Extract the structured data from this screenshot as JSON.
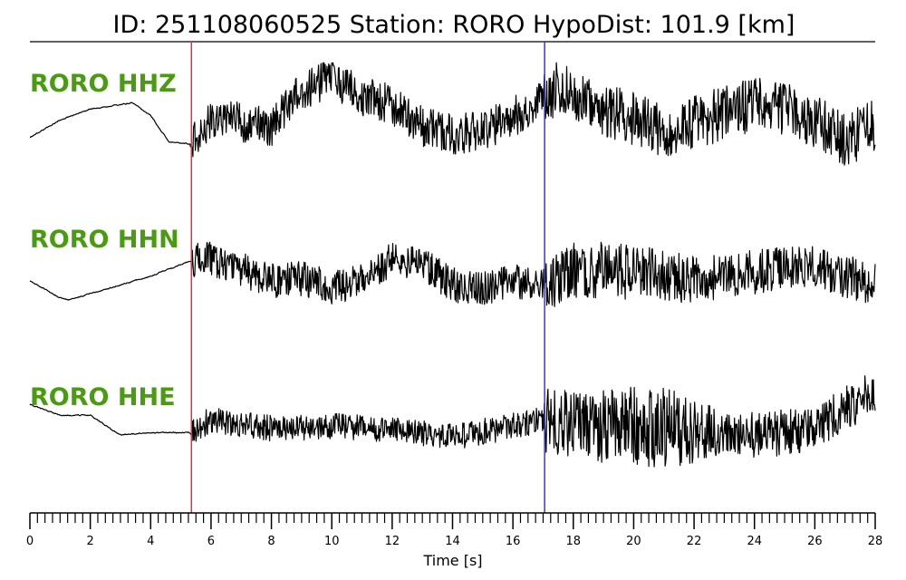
{
  "chart_data": {
    "type": "line",
    "title": "ID: 251108060525   Station: RORO   HypoDist:   101.9 [km]",
    "xlabel": "Time [s]",
    "xlim": [
      0,
      28
    ],
    "x_tick_labels": [
      "0",
      "2",
      "4",
      "6",
      "8",
      "10",
      "12",
      "14",
      "16",
      "18",
      "20",
      "22",
      "24",
      "26",
      "28"
    ],
    "x_major_step": 2,
    "x_minor_step": 0.25,
    "grid": false,
    "markers": [
      {
        "time": 5.35,
        "color": "#e8323c"
      },
      {
        "time": 17.05,
        "color": "#3a3ac8"
      }
    ],
    "series": [
      {
        "name": "RORO HHZ",
        "color": "#000000",
        "label_color": "#4a9a12",
        "keypoints": [
          [
            0,
            -0.45
          ],
          [
            1,
            -0.05
          ],
          [
            2,
            0.2
          ],
          [
            3,
            0.3
          ],
          [
            3.4,
            0.35
          ],
          [
            4,
            0.05
          ],
          [
            4.6,
            -0.55
          ],
          [
            5.3,
            -0.6
          ],
          [
            6,
            0
          ],
          [
            7,
            -0.1
          ],
          [
            8,
            -0.2
          ],
          [
            9,
            0.6
          ],
          [
            10,
            0.9
          ],
          [
            11,
            0.5
          ],
          [
            12,
            0.3
          ],
          [
            13,
            -0.2
          ],
          [
            14,
            -0.4
          ],
          [
            15,
            -0.3
          ],
          [
            16,
            0.0
          ],
          [
            17,
            0.5
          ],
          [
            17.6,
            0.7
          ],
          [
            18,
            0.4
          ],
          [
            19,
            0.2
          ],
          [
            20,
            0.0
          ],
          [
            21,
            -0.3
          ],
          [
            22,
            -0.1
          ],
          [
            23,
            0.1
          ],
          [
            24,
            0.3
          ],
          [
            25,
            0.2
          ],
          [
            26,
            -0.1
          ],
          [
            27,
            -0.5
          ],
          [
            28,
            -0.2
          ]
        ],
        "noise": [
          [
            0,
            0
          ],
          [
            5.3,
            0
          ],
          [
            5.4,
            0.9
          ],
          [
            17,
            0.95
          ],
          [
            17.1,
            1.25
          ],
          [
            28,
            1.25
          ]
        ]
      },
      {
        "name": "RORO HHN",
        "color": "#000000",
        "label_color": "#4a9a12",
        "keypoints": [
          [
            0,
            -0.2
          ],
          [
            1,
            -0.6
          ],
          [
            1.3,
            -0.65
          ],
          [
            2,
            -0.5
          ],
          [
            3,
            -0.3
          ],
          [
            4,
            -0.1
          ],
          [
            5.3,
            0.25
          ],
          [
            6,
            0.3
          ],
          [
            7,
            0.05
          ],
          [
            8,
            -0.2
          ],
          [
            9,
            -0.15
          ],
          [
            10,
            -0.35
          ],
          [
            11,
            -0.2
          ],
          [
            12,
            0.3
          ],
          [
            13,
            0.2
          ],
          [
            14,
            -0.3
          ],
          [
            15,
            -0.4
          ],
          [
            16,
            -0.2
          ],
          [
            17,
            -0.35
          ],
          [
            18,
            0.05
          ],
          [
            20,
            0.0
          ],
          [
            22,
            -0.2
          ],
          [
            24,
            0.0
          ],
          [
            26,
            0.1
          ],
          [
            28,
            -0.3
          ]
        ],
        "noise": [
          [
            0,
            0
          ],
          [
            5.3,
            0
          ],
          [
            5.4,
            0.8
          ],
          [
            17,
            0.8
          ],
          [
            17.1,
            1.2
          ],
          [
            19,
            1.35
          ],
          [
            23,
            1.05
          ],
          [
            28,
            1.0
          ]
        ]
      },
      {
        "name": "RORO HHE",
        "color": "#000000",
        "label_color": "#4a9a12",
        "keypoints": [
          [
            0,
            0.6
          ],
          [
            1,
            0.35
          ],
          [
            2,
            0.35
          ],
          [
            3,
            -0.1
          ],
          [
            4,
            -0.05
          ],
          [
            5.3,
            -0.05
          ],
          [
            6,
            0.25
          ],
          [
            8,
            0.05
          ],
          [
            10,
            0.1
          ],
          [
            12,
            0.0
          ],
          [
            14,
            -0.15
          ],
          [
            16,
            0.1
          ],
          [
            17,
            0.25
          ],
          [
            18,
            0.1
          ],
          [
            20,
            0.1
          ],
          [
            22,
            0.0
          ],
          [
            24,
            -0.1
          ],
          [
            26,
            0.0
          ],
          [
            27,
            0.5
          ],
          [
            28,
            0.9
          ]
        ],
        "noise": [
          [
            0,
            0
          ],
          [
            5.3,
            0
          ],
          [
            5.4,
            0.6
          ],
          [
            17,
            0.6
          ],
          [
            17.1,
            1.5
          ],
          [
            21,
            1.9
          ],
          [
            23,
            1.1
          ],
          [
            28,
            1.0
          ]
        ]
      }
    ]
  }
}
